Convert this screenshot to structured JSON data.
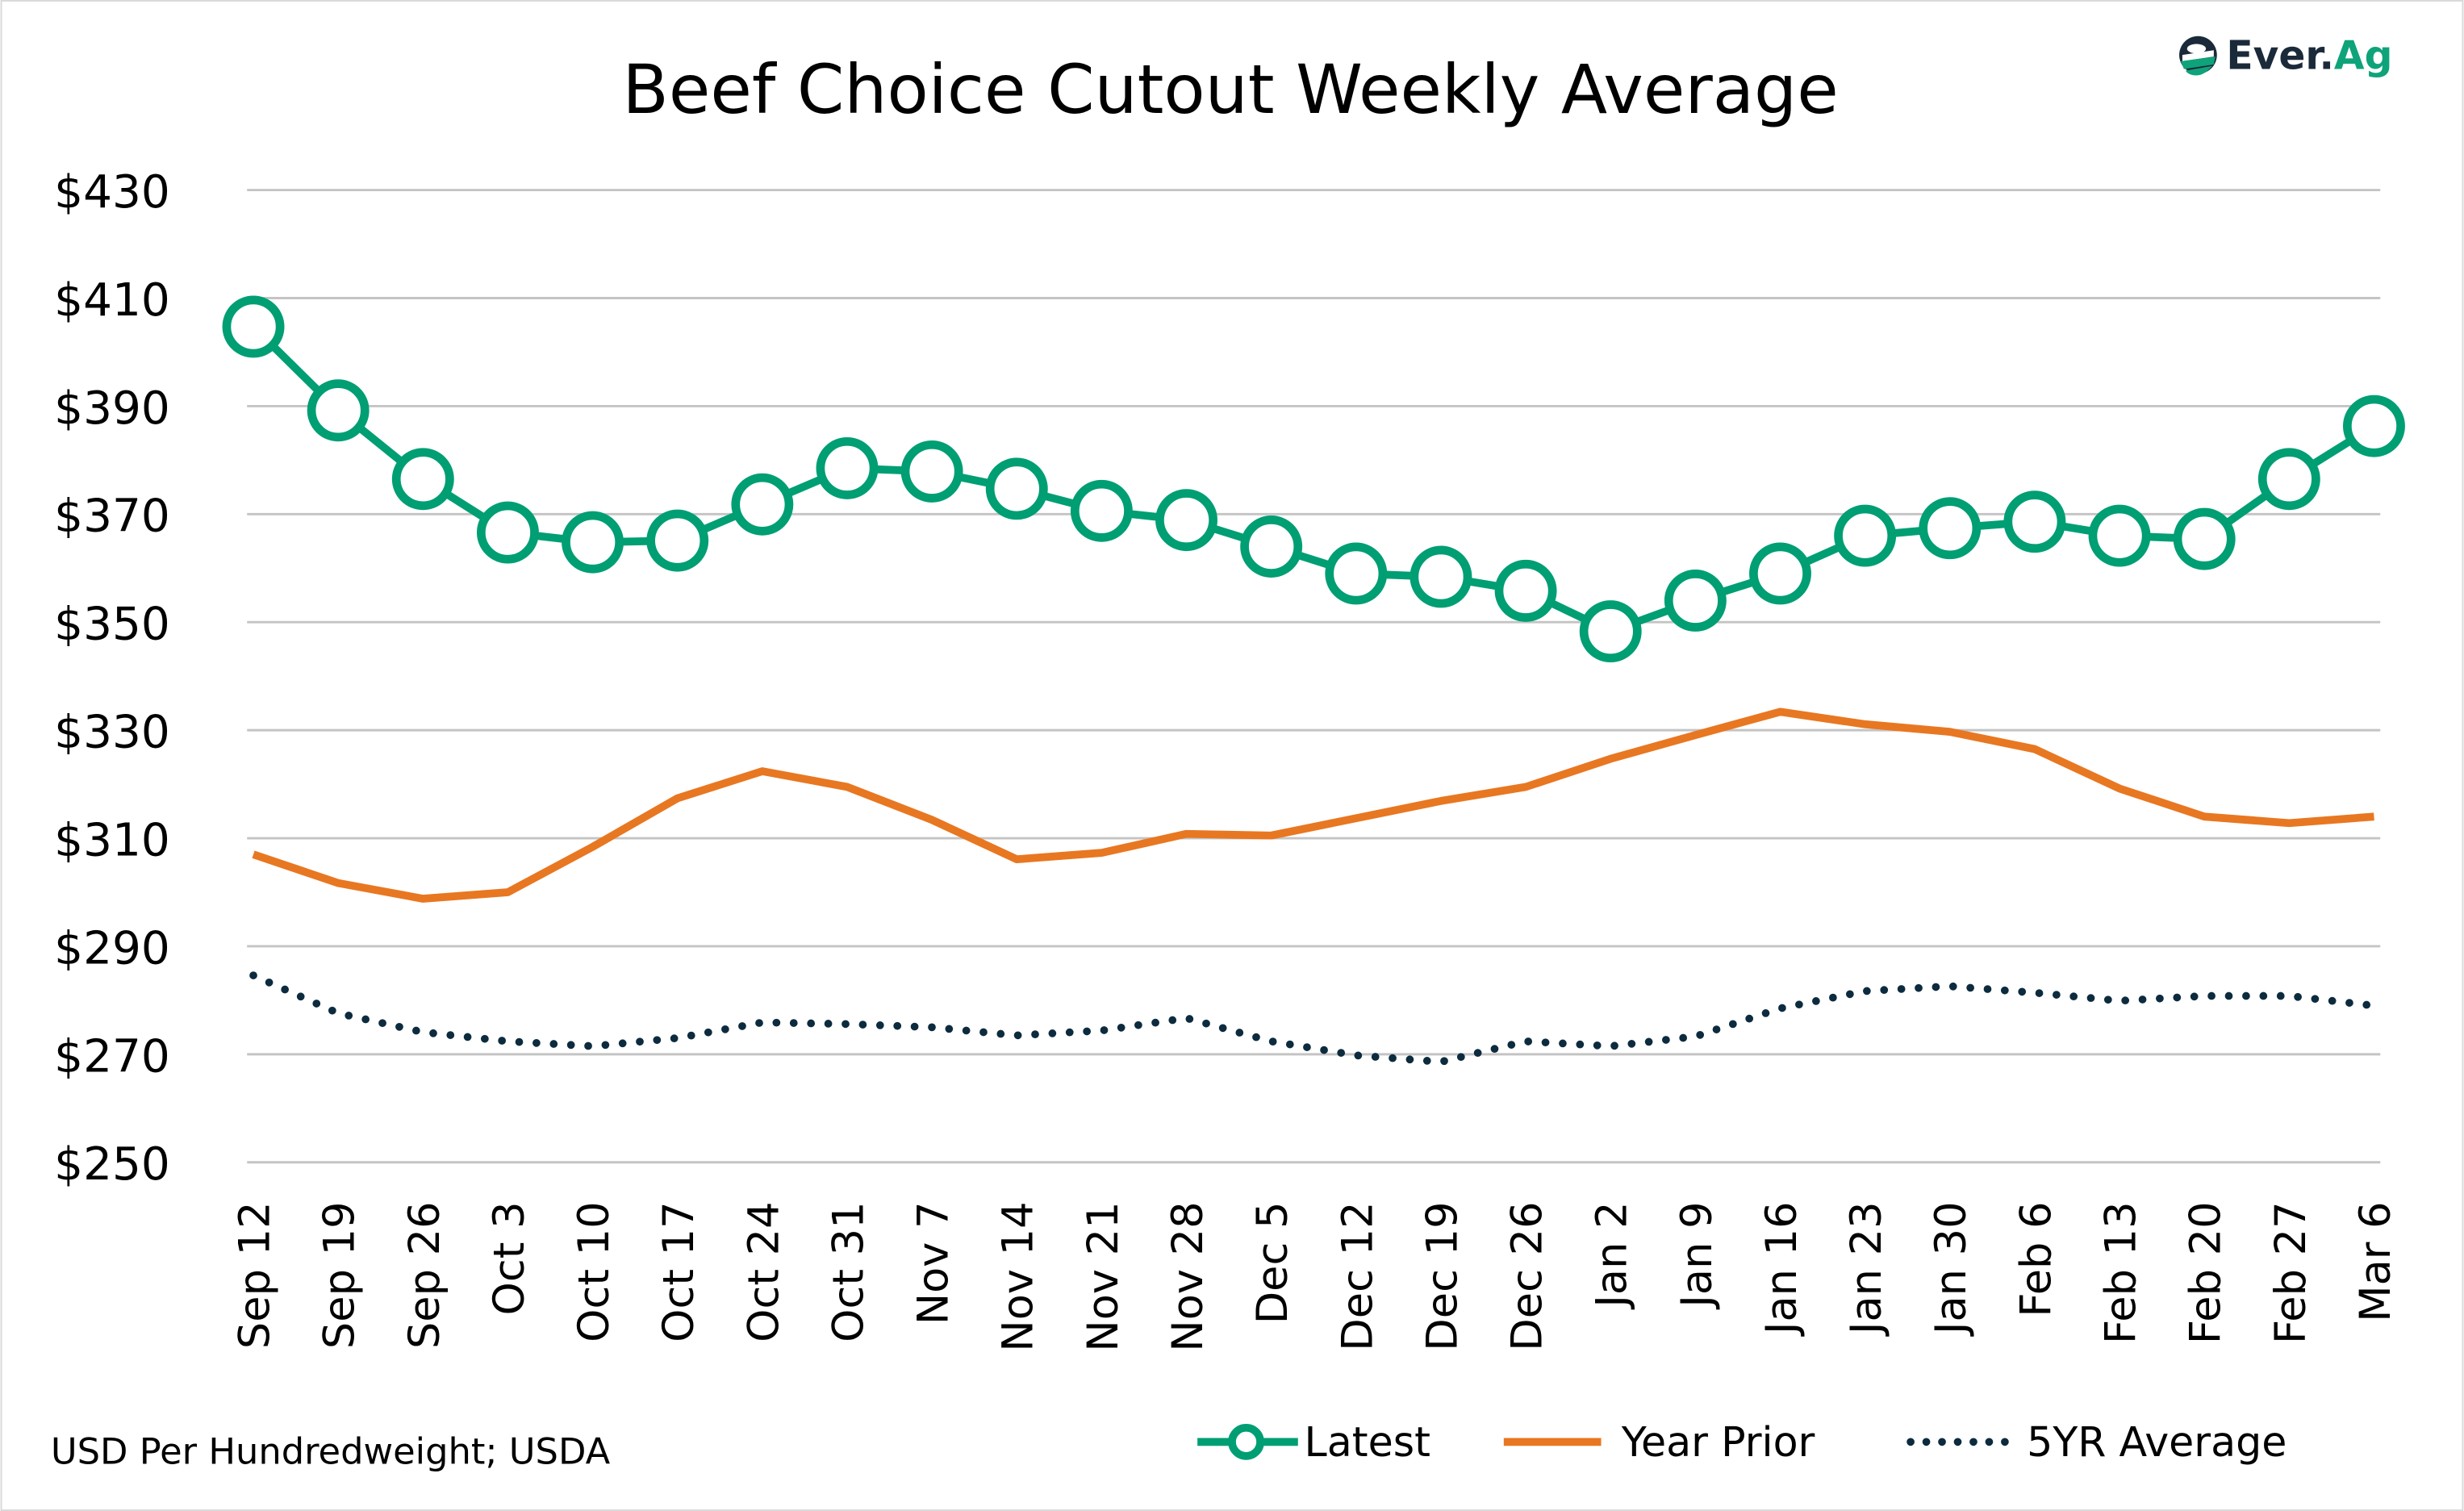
{
  "chart_data": {
    "type": "line",
    "title": "Beef Choice Cutout Weekly Average",
    "xlabel": "",
    "ylabel": "",
    "ylim": [
      250,
      430
    ],
    "yticks": [
      250,
      270,
      290,
      310,
      330,
      350,
      370,
      390,
      410,
      430
    ],
    "ytick_labels": [
      "$250",
      "$270",
      "$290",
      "$310",
      "$330",
      "$350",
      "$370",
      "$390",
      "$410",
      "$430"
    ],
    "grid": true,
    "legend_position": "bottom-right",
    "categories": [
      "Sep 12",
      "Sep 19",
      "Sep 26",
      "Oct 3",
      "Oct 10",
      "Oct 17",
      "Oct 24",
      "Oct 31",
      "Nov 7",
      "Nov 14",
      "Nov 21",
      "Nov 28",
      "Dec 5",
      "Dec 12",
      "Dec 19",
      "Dec 26",
      "Jan 2",
      "Jan 9",
      "Jan 16",
      "Jan 23",
      "Jan 30",
      "Feb 6",
      "Feb 13",
      "Feb 20",
      "Feb 27",
      "Mar 6"
    ],
    "series": [
      {
        "name": "Latest",
        "color": "#009e73",
        "style": "line-open-markers",
        "values": [
          404.7,
          389.2,
          376.5,
          366.6,
          364.8,
          365.1,
          371.8,
          378.5,
          377.9,
          374.7,
          370.6,
          368.9,
          364.0,
          359.0,
          358.4,
          355.8,
          348.3,
          354.0,
          359.0,
          366.0,
          367.4,
          368.6,
          366.0,
          365.4,
          376.5,
          386.3
        ]
      },
      {
        "name": "Year Prior",
        "color": "#e87722",
        "style": "solid",
        "values": [
          307.0,
          301.7,
          298.8,
          300.0,
          308.4,
          317.4,
          322.4,
          319.5,
          313.4,
          306.1,
          307.3,
          310.8,
          310.5,
          313.7,
          316.9,
          319.5,
          324.7,
          329.1,
          333.4,
          331.1,
          329.7,
          326.5,
          319.2,
          314.0,
          312.8,
          314.0
        ]
      },
      {
        "name": "5YR Average",
        "color": "#0d2b3e",
        "style": "dotted",
        "values": [
          284.6,
          277.6,
          274.1,
          272.4,
          271.5,
          273.0,
          275.9,
          275.6,
          275.0,
          273.5,
          274.4,
          276.7,
          272.4,
          269.8,
          268.6,
          272.4,
          271.5,
          273.3,
          278.5,
          281.7,
          282.6,
          281.4,
          279.9,
          280.8,
          280.8,
          279.0
        ]
      }
    ],
    "source_note": "USD Per Hundredweight; USDA"
  },
  "logo": {
    "text_dark": "Ever.",
    "text_green": "Ag",
    "dark": "#1b2a3a",
    "green": "#0fa37a"
  }
}
